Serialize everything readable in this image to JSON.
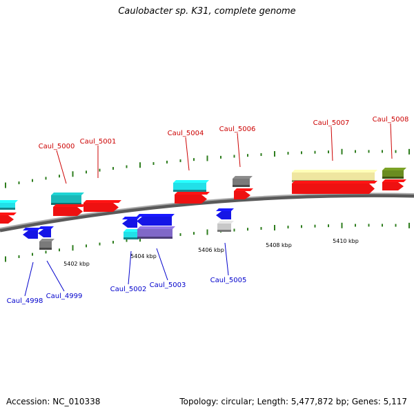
{
  "title": "Caulobacter sp. K31, complete genome",
  "footer": {
    "accession": "Accession: NC_010338",
    "topology": "Topology: circular; Length: 5,477,872 bp; Genes: 5,117"
  },
  "colors": {
    "backbone": "#8a8a8a",
    "forward_label": "#cc0000",
    "reverse_label": "#0000cc",
    "tick_marks": "#2e7d1e",
    "cds_forward": "#ee1111",
    "cds_reverse": "#1515e6",
    "cyan": "#22e0e8",
    "teal": "#1bb8b8",
    "gray": "#7a7a7a",
    "lightgray": "#c8c8c8",
    "khaki": "#efe6a0",
    "olive": "#6a8c20",
    "purple": "#8068c8"
  },
  "axis_labels": [
    "5402 kbp",
    "5404 kbp",
    "5406 kbp",
    "5408 kbp",
    "5410 kbp"
  ],
  "forward_genes": [
    "Caul_5000",
    "Caul_5001",
    "Caul_5004",
    "Caul_5006",
    "Caul_5007",
    "Caul_5008"
  ],
  "reverse_genes": [
    "Caul_4998",
    "Caul_4999",
    "Caul_5002",
    "Caul_5003",
    "Caul_5005"
  ]
}
